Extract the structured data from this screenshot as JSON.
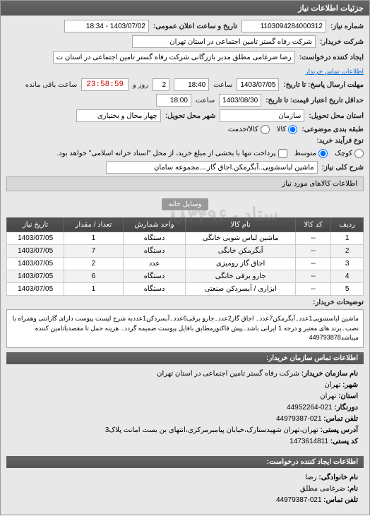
{
  "header": {
    "title": "جزئیات اطلاعات نیاز"
  },
  "form": {
    "need_no_label": "شماره نیاز:",
    "need_no": "1103094284000312",
    "public_datetime_label": "تاریخ و ساعت اعلان عمومی:",
    "public_datetime": "1403/07/02 - 18:34",
    "buyer_label": "شرکت خریدار:",
    "buyer": "شرکت رفاه گستر تامین اجتماعی در استان تهران",
    "creator_label": "ایجاد کننده درخواست:",
    "creator": "رضا ضرغامی مطلق مدیر بازرگانی شرکت رفاه گستر تامین اجتماعی در استان ت",
    "buyer_contact_link": "اطلاعات تماس خریدار",
    "deadline_label": "مهلت ارسال پاسخ: تا تاریخ:",
    "deadline_date": "1403/07/05",
    "time_label": "ساعت",
    "deadline_time": "18:40",
    "days_left": "2",
    "days_left_suffix": "روز و",
    "countdown": "23:58:59",
    "remaining_suffix": "ساعت باقی مانده",
    "validity_label": "حداقل تاریخ اعتبار قیمت: تا تاریخ:",
    "validity_date": "1403/08/30",
    "validity_time": "18:00",
    "delivery_prov_label": "استان‌ محل تحویل:",
    "delivery_prov": "سازمان",
    "delivery_city_label": "شهر محل تحویل:",
    "delivery_city": "چهار محال و بختیاری",
    "budget_label": "طبقه بندی موضوعی:",
    "budget_kala": "کالا",
    "budget_service": "کالا/خدمت",
    "process_label": "نوع فرآیند خرید:",
    "proc_small": "کوچک",
    "proc_med": "متوسط",
    "proc_note": "پرداخت تنها با بخشی از مبلغ خرید، از محل \"اسناد خزانه اسلامی\" خواهد بود.",
    "subject_label": "شرح کلی نیاز:",
    "subject": "ماشین لباسشویی..آبگرمکن.اجاق گاز....مجموعه سامان"
  },
  "goods_header": "اطلاعات کالاهای مورد نیاز",
  "goods_category": "وسایل خانه",
  "table": {
    "cols": [
      "ردیف",
      "کد کالا",
      "نام کالا",
      "واحد شمارش",
      "تعداد / مقدار",
      "تاریخ نیاز"
    ],
    "rows": [
      [
        "1",
        "--",
        "ماشین لباس شویی خانگی",
        "دستگاه",
        "1",
        "1403/07/05"
      ],
      [
        "2",
        "--",
        "آبگرمکن خانگی",
        "دستگاه",
        "7",
        "1403/07/05"
      ],
      [
        "3",
        "--",
        "اجاق گاز رومیزی",
        "عدد",
        "2",
        "1403/07/05"
      ],
      [
        "4",
        "--",
        "جارو برقی خانگی",
        "دستگاه",
        "6",
        "1403/07/05"
      ],
      [
        "5",
        "--",
        "ابزاری / آبسردکن صنعتی",
        "دستگاه",
        "1",
        "1403/07/05"
      ]
    ]
  },
  "notes_label": "توضیحات خریدار:",
  "notes": "ماشین لباسشویی1عدد۔آبگرمکن7عدد۔ اجاق گاز2عدد۔جارو برقی6عدد۔آبسردکن1عددبه شرح لیست پیوست دارای گارانتی وهمراه با نصب۔برند های معتبر و درجه 1 ایرانی باشد۔پیش فاکتورمطابق بافایل پیوست ضمیمه گردد۔ هزینه حمل تا مقصدباتامین کننده میباشد449793878",
  "contact1": {
    "header": "اطلاعات تماس سازمان خریدار:",
    "org_label": "نام سازمان خریدار:",
    "org": "شرکت رفاه گستر تامین اجتماعی در استان تهران",
    "city_label": "شهر:",
    "city": "تهران",
    "province_label": "استان:",
    "province": "تهران",
    "fax_label": "دورنگار:",
    "fax": "021-44952264",
    "tel_label": "تلفن تماس:",
    "tel": "021-44979387",
    "addr_label": "آدرس پستی:",
    "addr": "تهران،تهران شهیدستارک،خیابان پیامبرمرکزی،انتهای بن بست امانت پلاک3",
    "post_label": "کد پستی:",
    "post": "1473614811"
  },
  "contact2": {
    "header": "اطلاعات ایجاد کننده درخواست:",
    "family_label": "نام خانوادگی:",
    "family": "رضا",
    "name_label": "نام:",
    "name": "ضرغامی مطلق",
    "tel_label": "تلفن تماس:",
    "tel": "021-44979387"
  },
  "watermark": "ستاد - ۸۸۳۴۹۶"
}
